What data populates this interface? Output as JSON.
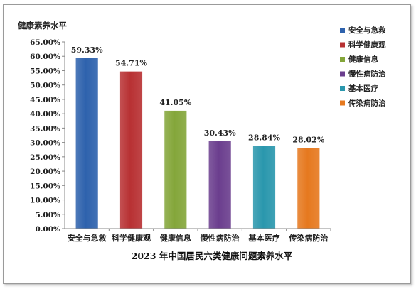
{
  "chart_data": {
    "type": "bar",
    "title": "2023 年中国居民六类健康问题素养水平",
    "ylabel": "健康素养水平",
    "xlabel": "",
    "ylim": [
      0,
      65
    ],
    "ytick_step": 5,
    "yticks": [
      "0.00%",
      "5.00%",
      "10.00%",
      "15.00%",
      "20.00%",
      "25.00%",
      "30.00%",
      "35.00%",
      "40.00%",
      "45.00%",
      "50.00%",
      "55.00%",
      "60.00%",
      "65.00%"
    ],
    "categories": [
      "安全与急救",
      "科学健康观",
      "健康信息",
      "慢性病防治",
      "基本医疗",
      "传染病防治"
    ],
    "values": [
      59.33,
      54.71,
      41.05,
      30.43,
      28.84,
      28.02
    ],
    "value_labels": [
      "59.33%",
      "54.71%",
      "41.05%",
      "30.43%",
      "28.84%",
      "28.02%"
    ],
    "colors": [
      "#2e62ad",
      "#b83133",
      "#84a63a",
      "#6b3e8e",
      "#2a97ad",
      "#e6791f"
    ],
    "legend": [
      "安全与急救",
      "科学健康观",
      "健康信息",
      "慢性病防治",
      "基本医疗",
      "传染病防治"
    ],
    "legend_position": "top-right",
    "grid": false
  }
}
